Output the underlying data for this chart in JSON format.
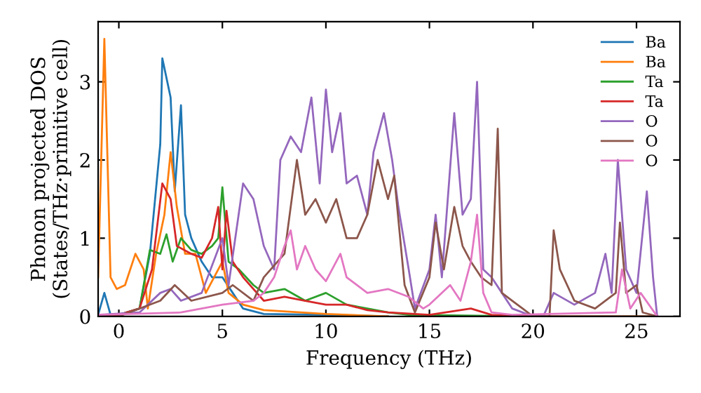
{
  "chart_data": {
    "type": "line",
    "xlabel": "Frequency (THz)",
    "ylabel": "Phonon projected DOS\n(States/THz·primitive cell)",
    "xlim": [
      -1,
      27.1
    ],
    "ylim": [
      0,
      3.77
    ],
    "xticks": [
      0,
      5,
      10,
      15,
      20,
      25
    ],
    "yticks": [
      0,
      1,
      2,
      3
    ],
    "grid": false,
    "legend": "top right",
    "marker": "none",
    "line_style": "solid",
    "series": [
      {
        "name": "Ba",
        "color": "#1f77b4",
        "x": [
          -1,
          -0.7,
          -0.4,
          0,
          1,
          1.5,
          2,
          2.1,
          2.5,
          2.7,
          3.0,
          3.2,
          3.5,
          4,
          4.5,
          5,
          5.5,
          6,
          7,
          10,
          13
        ],
        "values": [
          0.02,
          0.3,
          0.02,
          0.02,
          0.1,
          0.8,
          2.2,
          3.3,
          2.8,
          1.6,
          2.7,
          1.3,
          1.0,
          0.7,
          0.5,
          0.5,
          0.3,
          0.1,
          0.03,
          0.02,
          0
        ]
      },
      {
        "name": "Ba",
        "color": "#ff7f0e",
        "x": [
          -1,
          -0.7,
          -0.4,
          -0.1,
          0.3,
          0.8,
          1.2,
          1.4,
          1.8,
          2.2,
          2.5,
          2.8,
          3.2,
          3.7,
          4.2,
          4.6,
          5.0,
          5.3,
          6,
          7,
          10,
          13
        ],
        "values": [
          0.5,
          3.55,
          0.5,
          0.35,
          0.4,
          0.8,
          0.6,
          0.1,
          0.8,
          1.3,
          2.1,
          1.4,
          0.8,
          0.8,
          0.3,
          0.5,
          0.7,
          0.3,
          0.15,
          0.08,
          0.03,
          0
        ]
      },
      {
        "name": "Ta",
        "color": "#2ca02c",
        "x": [
          -1,
          0,
          1,
          1.5,
          2,
          2.3,
          2.6,
          3,
          3.5,
          4,
          4.5,
          4.8,
          5.0,
          5.3,
          5.8,
          6.5,
          7,
          8,
          9,
          10,
          11,
          12,
          13,
          14,
          20,
          26
        ],
        "values": [
          0.02,
          0.02,
          0.1,
          0.85,
          0.8,
          1.05,
          0.7,
          1.0,
          0.85,
          0.8,
          0.9,
          1.0,
          1.65,
          0.7,
          0.6,
          0.4,
          0.3,
          0.35,
          0.2,
          0.3,
          0.15,
          0.1,
          0.05,
          0.02,
          0,
          0
        ]
      },
      {
        "name": "Ta",
        "color": "#d62728",
        "x": [
          -1,
          0,
          1,
          1.6,
          2.1,
          2.5,
          2.8,
          3.5,
          4,
          4.5,
          4.8,
          5.0,
          5.2,
          5.5,
          6,
          7,
          8,
          9,
          10,
          11,
          12,
          13,
          15,
          17,
          18,
          20,
          26
        ],
        "values": [
          0.02,
          0.02,
          0.1,
          0.6,
          1.7,
          1.5,
          0.9,
          0.8,
          0.75,
          1.0,
          1.4,
          0.6,
          1.35,
          0.7,
          0.5,
          0.2,
          0.25,
          0.2,
          0.15,
          0.15,
          0.08,
          0.05,
          0.02,
          0.1,
          0.02,
          0,
          0
        ]
      },
      {
        "name": "O",
        "color": "#9467bd",
        "x": [
          -1,
          1,
          2,
          2.5,
          3,
          4,
          5,
          5.3,
          6,
          6.5,
          7,
          7.5,
          7.8,
          8.3,
          8.8,
          9.3,
          9.7,
          10,
          10.3,
          10.7,
          11,
          11.5,
          12,
          12.3,
          12.8,
          13.2,
          13.5,
          14,
          14.3,
          15,
          15.3,
          15.6,
          16.2,
          16.6,
          17,
          17.3,
          17.6,
          18,
          18.5,
          19,
          20,
          20.5,
          21,
          22,
          23,
          23.5,
          23.8,
          24.1,
          24.5,
          25,
          25.5,
          25.8,
          26
        ],
        "values": [
          0.02,
          0.05,
          0.3,
          0.35,
          0.2,
          0.3,
          1.0,
          0.4,
          1.7,
          1.5,
          0.9,
          0.6,
          2.0,
          2.3,
          2.1,
          2.8,
          1.7,
          2.9,
          2.1,
          2.6,
          1.7,
          1.8,
          1.3,
          2.1,
          2.6,
          2.0,
          1.4,
          0.6,
          0.1,
          0.6,
          1.3,
          0.5,
          2.6,
          1.3,
          1.5,
          3.0,
          0.6,
          0.5,
          0.3,
          0.1,
          0,
          0,
          0.3,
          0.15,
          0.3,
          0.8,
          0.3,
          2.0,
          0.6,
          0.3,
          1.6,
          0.5,
          0
        ]
      },
      {
        "name": "O",
        "color": "#8c564b",
        "x": [
          -1,
          0,
          2,
          2.7,
          3.5,
          5,
          5.5,
          6.5,
          7,
          8,
          8.6,
          9,
          9.5,
          10,
          10.5,
          11,
          11.5,
          12,
          12.5,
          13,
          13.3,
          13.8,
          14.3,
          15,
          15.3,
          15.7,
          16.2,
          16.6,
          17,
          17.5,
          18,
          18.3,
          18.5,
          19,
          19.5,
          20,
          20.8,
          21,
          21.3,
          22,
          23,
          24,
          24.2,
          24.5,
          25,
          25.3,
          26
        ],
        "values": [
          0,
          0,
          0.2,
          0.4,
          0.2,
          0.3,
          0.4,
          0.2,
          0.5,
          0.8,
          2.0,
          1.3,
          1.5,
          1.2,
          1.5,
          1.0,
          1.0,
          1.3,
          2.0,
          1.5,
          1.8,
          0.4,
          0.05,
          0.5,
          1.2,
          0.6,
          1.4,
          0.9,
          0.7,
          0.5,
          0.4,
          2.4,
          0.3,
          0.2,
          0.1,
          0,
          0,
          1.1,
          0.6,
          0.2,
          0.1,
          0.3,
          1.2,
          0.3,
          0.4,
          0.05,
          0
        ]
      },
      {
        "name": "O",
        "color": "#e377c2",
        "x": [
          -1,
          3,
          5,
          6.5,
          7,
          7.5,
          8,
          8.3,
          8.6,
          9,
          9.5,
          10,
          10.7,
          11,
          12,
          13,
          14,
          14.7,
          15,
          16,
          16.5,
          17,
          17.3,
          17.6,
          18,
          19,
          24,
          24.3,
          24.7,
          25.2,
          26
        ],
        "values": [
          0.02,
          0.05,
          0.15,
          0.2,
          0.3,
          0.5,
          0.9,
          1.1,
          0.6,
          0.9,
          0.6,
          0.45,
          0.8,
          0.5,
          0.3,
          0.35,
          0.25,
          0.1,
          0.15,
          0.4,
          0.2,
          0.7,
          1.3,
          0.3,
          0.05,
          0.02,
          0.05,
          0.6,
          0.1,
          0.3,
          0
        ]
      }
    ]
  }
}
